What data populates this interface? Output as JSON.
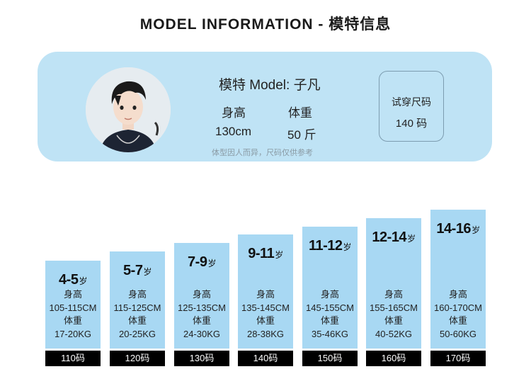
{
  "header": {
    "title": "MODEL INFORMATION - 模特信息"
  },
  "model": {
    "name": "模特 Model: 子凡",
    "height_label": "身高",
    "weight_label": "体重",
    "height_value": "130cm",
    "weight_value": "50 斤",
    "note": "体型因人而异，尺码仅供参考",
    "try_label": "试穿尺码",
    "try_size": "140 码"
  },
  "sizes": [
    {
      "age": "4-5",
      "unit": "岁",
      "height_label": "身高",
      "height": "105-115CM",
      "weight_label": "体重",
      "weight": "17-20KG",
      "tag": "110码"
    },
    {
      "age": "5-7",
      "unit": "岁",
      "height_label": "身高",
      "height": "115-125CM",
      "weight_label": "体重",
      "weight": "20-25KG",
      "tag": "120码"
    },
    {
      "age": "7-9",
      "unit": "岁",
      "height_label": "身高",
      "height": "125-135CM",
      "weight_label": "体重",
      "weight": "24-30KG",
      "tag": "130码"
    },
    {
      "age": "9-11",
      "unit": "岁",
      "height_label": "身高",
      "height": "135-145CM",
      "weight_label": "体重",
      "weight": "28-38KG",
      "tag": "140码"
    },
    {
      "age": "11-12",
      "unit": "岁",
      "height_label": "身高",
      "height": "145-155CM",
      "weight_label": "体重",
      "weight": "35-46KG",
      "tag": "150码"
    },
    {
      "age": "12-14",
      "unit": "岁",
      "height_label": "身高",
      "height": "155-165CM",
      "weight_label": "体重",
      "weight": "40-52KG",
      "tag": "160码"
    },
    {
      "age": "14-16",
      "unit": "岁",
      "height_label": "身高",
      "height": "160-170CM",
      "weight_label": "体重",
      "weight": "50-60KG",
      "tag": "170码"
    }
  ],
  "colors": {
    "card_bg": "#bfe3f5",
    "size_box": "#a8d8f3",
    "tag_bg": "#000000"
  }
}
